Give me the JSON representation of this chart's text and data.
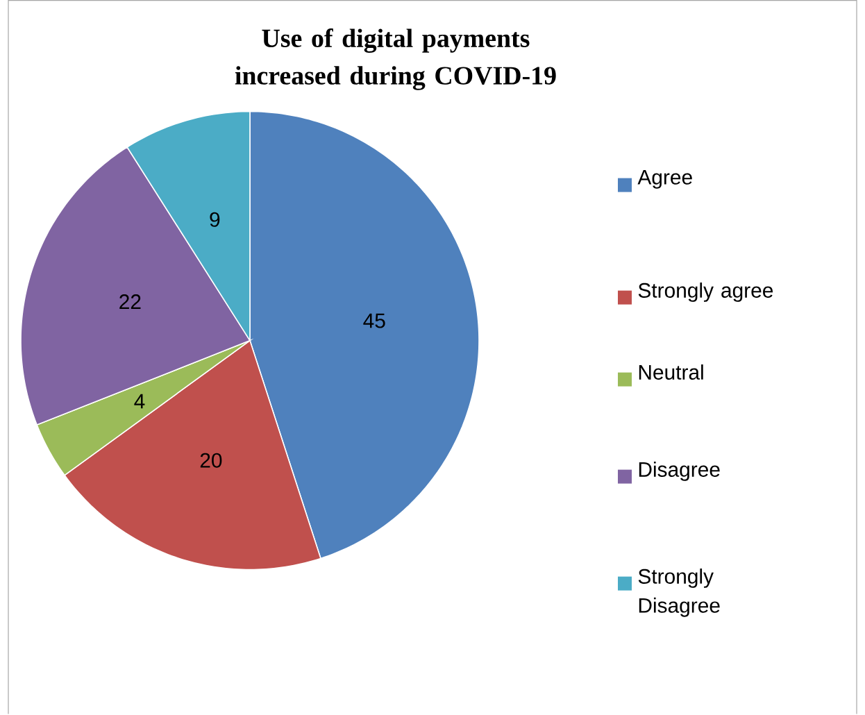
{
  "chart_data": {
    "type": "pie",
    "title": "Use of digital payments increased during  COVID-19",
    "categories": [
      "Agree",
      "Strongly agree",
      "Neutral",
      "Disagree",
      "Strongly Disagree"
    ],
    "values": [
      45,
      20,
      4,
      22,
      9
    ],
    "colors": [
      "#4f81bd",
      "#c0504d",
      "#9bbb59",
      "#8064a2",
      "#4bacc6"
    ],
    "data_labels": true,
    "legend": "right"
  }
}
